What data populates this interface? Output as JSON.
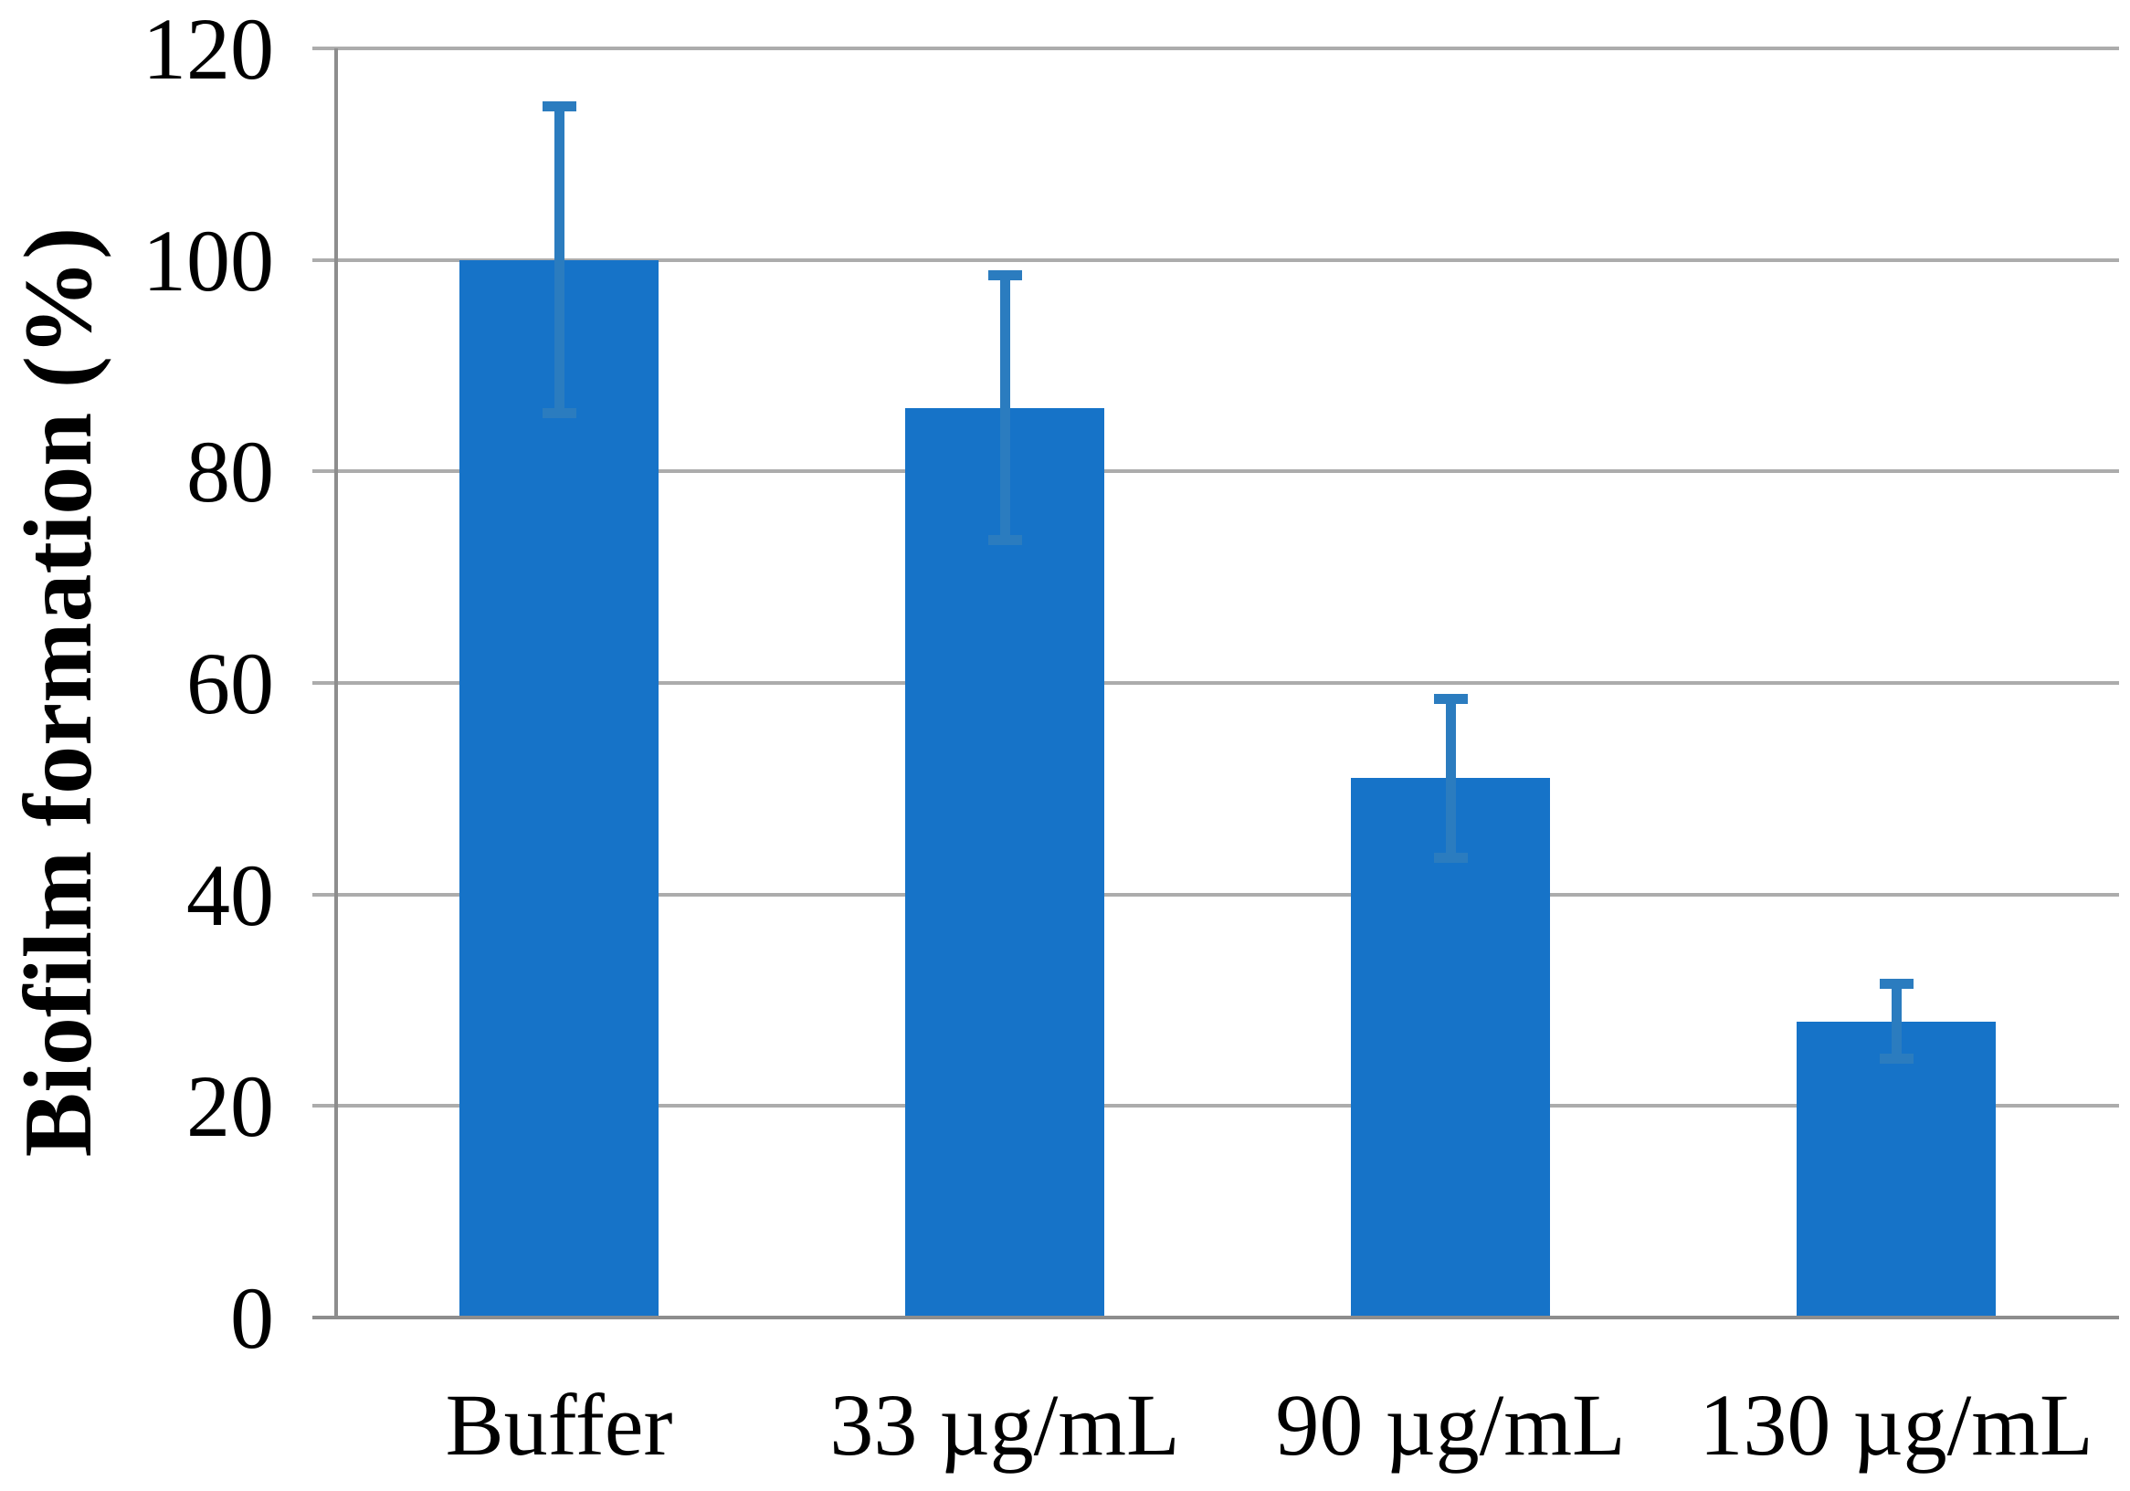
{
  "chart_data": {
    "type": "bar",
    "title": "",
    "categories": [
      "Buffer",
      "33 µg/mL",
      "90 µg/mL",
      "130 µg/mL"
    ],
    "values": [
      100,
      86,
      51,
      28
    ],
    "error_bars": {
      "plus": [
        15,
        13,
        8,
        4
      ],
      "minus": [
        15,
        13,
        8,
        4
      ]
    },
    "xlabel": "",
    "ylabel": "Biofilm formation (%)",
    "ylim": [
      0,
      120
    ],
    "yticks": [
      0,
      20,
      40,
      60,
      80,
      100,
      120
    ],
    "grid": true,
    "legend": false,
    "colors": {
      "bar": "#1673C8",
      "error_bar": "#2B7CBF",
      "gridline": "#ACACAC",
      "axis": "#8D8D8D",
      "text": "#000000",
      "background": "#FFFFFF"
    }
  }
}
